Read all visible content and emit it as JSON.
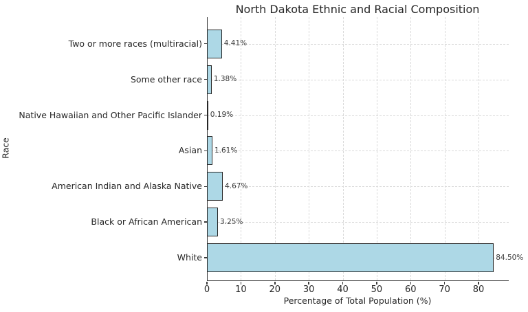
{
  "chart_data": {
    "type": "bar",
    "orientation": "horizontal",
    "title": "North Dakota Ethnic and Racial Composition",
    "xlabel": "Percentage of Total Population (%)",
    "ylabel": "Race",
    "categories": [
      "Two or more races (multiracial)",
      "Some other race",
      "Native Hawaiian and Other Pacific Islander",
      "Asian",
      "American Indian and Alaska Native",
      "Black or African American",
      "White"
    ],
    "values": [
      4.41,
      1.38,
      0.19,
      1.61,
      4.67,
      3.25,
      84.5
    ],
    "value_labels": [
      "4.41%",
      "1.38%",
      "0.19%",
      "1.61%",
      "4.67%",
      "3.25%",
      "84.50%"
    ],
    "xticks": [
      0,
      10,
      20,
      30,
      40,
      50,
      60,
      70,
      80
    ],
    "xtick_labels": [
      "0",
      "10",
      "20",
      "30",
      "40",
      "50",
      "60",
      "70",
      "80"
    ],
    "xlim": [
      0,
      88.7
    ],
    "grid": "dashed-both",
    "legend": "none",
    "bar_color": "#ADD8E6",
    "bar_edge_color": "#262626",
    "gridline_color": "#d9d9d9",
    "axis_color": "#3a3a3a"
  }
}
